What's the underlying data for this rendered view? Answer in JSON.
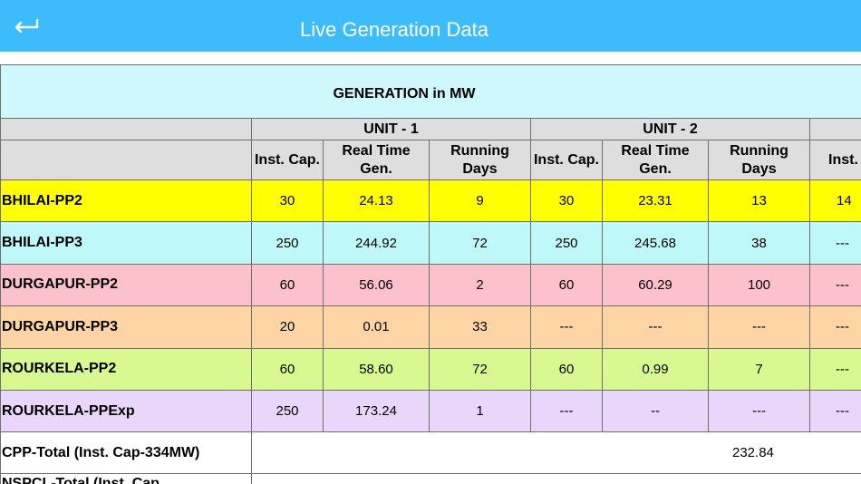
{
  "header": {
    "title": "Live Generation Data",
    "back_icon": "back-arrow-icon"
  },
  "table": {
    "generation_header": "GENERATION in MW",
    "units": [
      "UNIT - 1",
      "UNIT - 2",
      ""
    ],
    "columns": {
      "inst_cap": "Inst. Cap.",
      "real_time_gen": "Real Time Gen.",
      "running_days": "Running Days",
      "inst_cap_partial": "Inst. Cap."
    },
    "rows": [
      {
        "name": "BHILAI-PP2",
        "color": "#ffff00",
        "cells": [
          "30",
          "24.13",
          "9",
          "30",
          "23.31",
          "13",
          "14"
        ]
      },
      {
        "name": "BHILAI-PP3",
        "color": "#bff8f8",
        "cells": [
          "250",
          "244.92",
          "72",
          "250",
          "245.68",
          "38",
          "---"
        ]
      },
      {
        "name": "DURGAPUR-PP2",
        "color": "#fdc1cb",
        "cells": [
          "60",
          "56.06",
          "2",
          "60",
          "60.29",
          "100",
          "---"
        ]
      },
      {
        "name": "DURGAPUR-PP3",
        "color": "#fdd5a4",
        "cells": [
          "20",
          "0.01",
          "33",
          "---",
          "---",
          "---",
          "---"
        ]
      },
      {
        "name": "ROURKELA-PP2",
        "color": "#d8f98f",
        "cells": [
          "60",
          "58.60",
          "72",
          "60",
          "0.99",
          "7",
          "---"
        ]
      },
      {
        "name": "ROURKELA-PPExp",
        "color": "#e8d6fb",
        "cells": [
          "250",
          "173.24",
          "1",
          "---",
          "--",
          "---",
          "---"
        ]
      }
    ],
    "totals": [
      {
        "name": "CPP-Total (Inst. Cap-334MW)",
        "value": "232.84"
      }
    ],
    "partial_row": {
      "name": "NSPCL-Total (Inst. Cap"
    }
  }
}
